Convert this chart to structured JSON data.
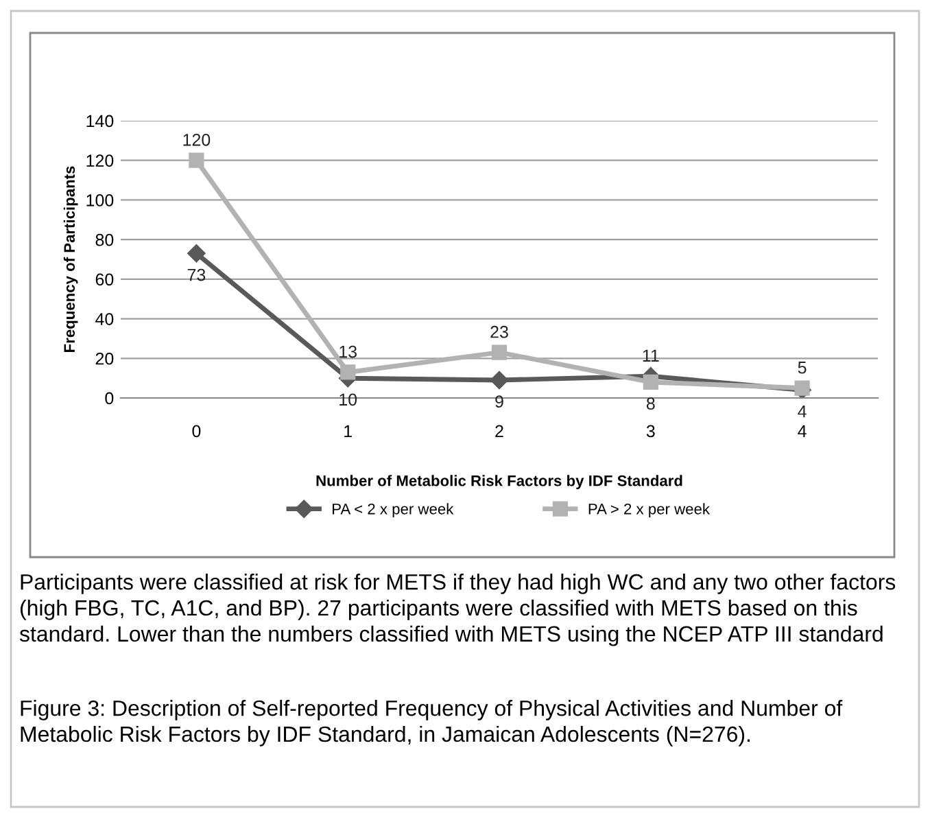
{
  "chart_data": {
    "type": "line",
    "xlabel": "Number of Metabolic Risk Factors by IDF Standard",
    "ylabel": "Frequency of Participants",
    "categories": [
      "0",
      "1",
      "2",
      "3",
      "4"
    ],
    "series": [
      {
        "name": "PA < 2 x per week",
        "color": "#595959",
        "marker": "diamond",
        "values": [
          73,
          10,
          9,
          11,
          4
        ]
      },
      {
        "name": "PA > 2 x per week",
        "color": "#b2b2b2",
        "marker": "square",
        "values": [
          120,
          13,
          23,
          8,
          5
        ]
      }
    ],
    "ylim": [
      0,
      140
    ],
    "yticks": [
      0,
      20,
      40,
      60,
      80,
      100,
      120,
      140
    ],
    "grid": "y",
    "legend": "bottom",
    "data_labels": true,
    "line_style": "solid",
    "annotations": [
      "Participants were classified at risk for METS if they had high WC and any two other factors (high FBG, TC, A1C, and BP). 27 participants were classified with METS based on this standard. Lower than the numbers classified with METS using the NCEP ATP III standard",
      "Figure 3: Description of Self-reported Frequency of Physical Activities and Number of Metabolic Risk Factors by IDF Standard, in Jamaican Adolescents (N=276)."
    ]
  }
}
